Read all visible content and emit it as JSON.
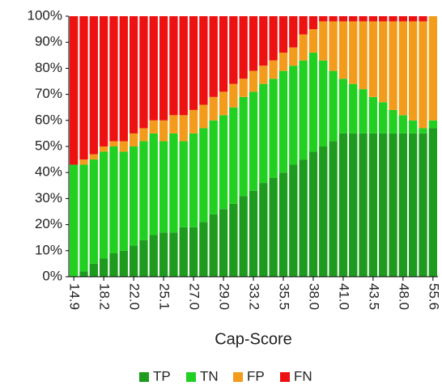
{
  "chart_data": {
    "type": "stacked_bar",
    "x_label": "Cap-Score",
    "categories": [
      "14.9",
      null,
      null,
      "18.2",
      null,
      null,
      "22.0",
      null,
      null,
      "25.1",
      null,
      null,
      "27.0",
      null,
      null,
      "29.0",
      null,
      null,
      "33.2",
      null,
      null,
      "35.5",
      null,
      null,
      "38.0",
      null,
      null,
      "41.0",
      null,
      null,
      "43.5",
      null,
      null,
      "48.0",
      null,
      null,
      "55.6"
    ],
    "series": [
      {
        "name": "TP",
        "color": "#1e9b1e",
        "values": [
          0,
          2,
          5,
          7,
          9,
          10,
          12,
          14,
          16,
          17,
          17,
          19,
          19,
          21,
          24,
          26,
          28,
          31,
          33,
          36,
          38,
          40,
          43,
          45,
          48,
          50,
          52,
          55,
          55,
          55,
          55,
          55,
          55,
          55,
          55,
          55,
          57
        ]
      },
      {
        "name": "TN",
        "color": "#22d022",
        "values": [
          43,
          41,
          40,
          41,
          41,
          38,
          38,
          38,
          39,
          35,
          38,
          33,
          36,
          36,
          36,
          36,
          37,
          38,
          38,
          38,
          38,
          39,
          38,
          38,
          38,
          33,
          27,
          21,
          19,
          17,
          14,
          12,
          9,
          7,
          5,
          2,
          3
        ]
      },
      {
        "name": "FP",
        "color": "#f39c1c",
        "values": [
          0,
          2,
          2,
          2,
          2,
          4,
          5,
          5,
          5,
          8,
          7,
          10,
          9,
          9,
          9,
          9,
          9,
          7,
          8,
          7,
          7,
          7,
          7,
          10,
          9,
          15,
          19,
          22,
          24,
          26,
          29,
          31,
          34,
          36,
          38,
          41,
          40
        ]
      },
      {
        "name": "FN",
        "color": "#ee1111",
        "values": [
          57,
          55,
          53,
          50,
          48,
          48,
          45,
          43,
          40,
          40,
          38,
          38,
          36,
          34,
          31,
          29,
          26,
          24,
          21,
          19,
          17,
          14,
          12,
          7,
          5,
          2,
          2,
          2,
          2,
          2,
          2,
          2,
          2,
          2,
          2,
          2,
          0
        ]
      }
    ],
    "ylim": [
      0,
      100
    ],
    "yticks": [
      {
        "value": 0,
        "label": "0%"
      },
      {
        "value": 10,
        "label": "10%"
      },
      {
        "value": 20,
        "label": "20%"
      },
      {
        "value": 30,
        "label": "30%"
      },
      {
        "value": 40,
        "label": "40%"
      },
      {
        "value": 50,
        "label": "50%"
      },
      {
        "value": 60,
        "label": "60%"
      },
      {
        "value": 70,
        "label": "70%"
      },
      {
        "value": 80,
        "label": "80%"
      },
      {
        "value": 90,
        "label": "90%"
      },
      {
        "value": 100,
        "label": "100%"
      }
    ],
    "legend": "bottom"
  }
}
